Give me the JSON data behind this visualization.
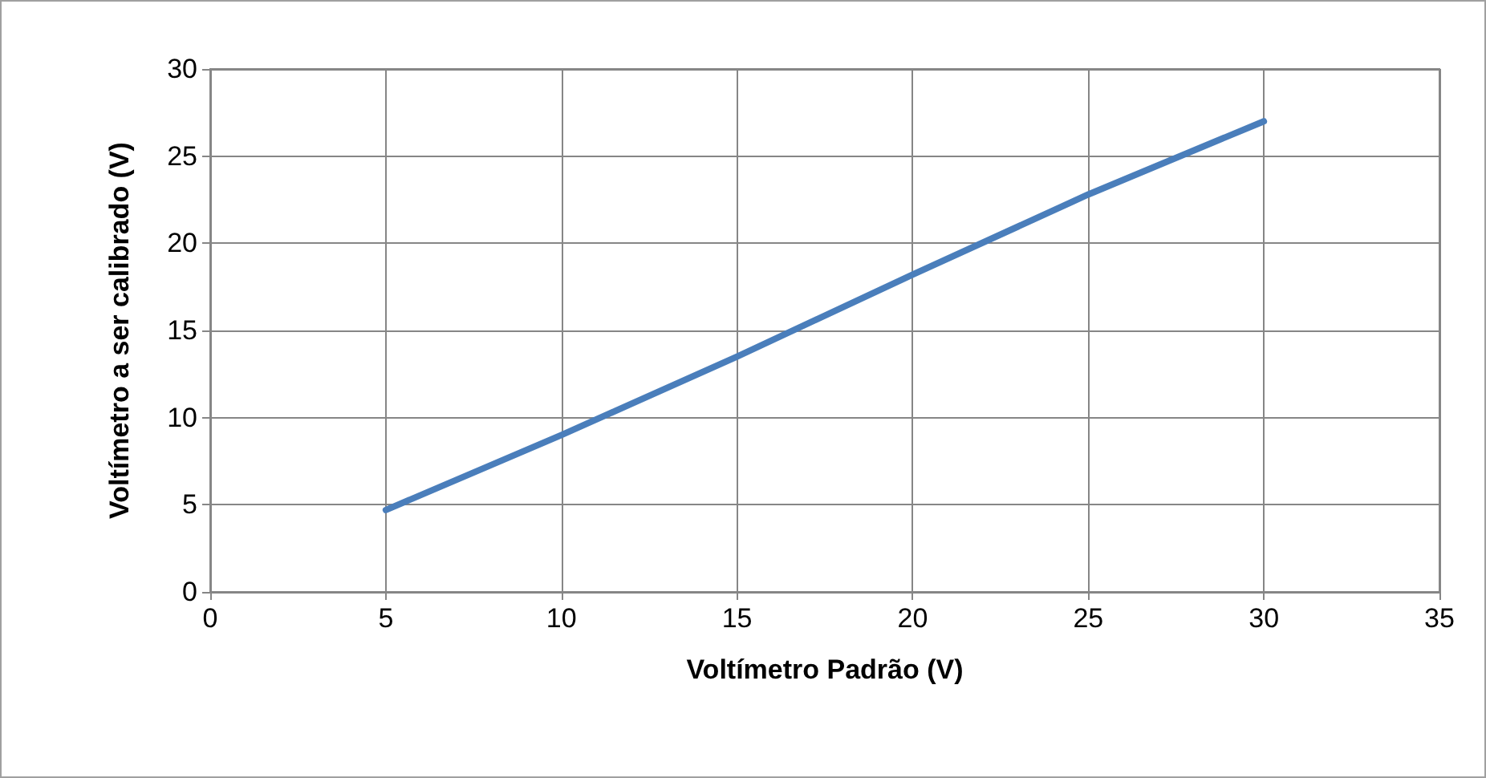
{
  "chart_data": {
    "type": "line",
    "xlabel": "Voltímetro Padrão (V)",
    "ylabel": "Voltímetro a ser calibrado (V)",
    "x": [
      5,
      10,
      15,
      20,
      25,
      30
    ],
    "series": [
      {
        "color": "#4a7ebb",
        "values": [
          4.7,
          9.0,
          13.5,
          18.2,
          22.8,
          27.0
        ]
      }
    ],
    "xlim": [
      0,
      35
    ],
    "xticks": [
      0,
      5,
      10,
      15,
      20,
      25,
      30,
      35
    ],
    "ylim": [
      0,
      30
    ],
    "yticks": [
      0,
      5,
      10,
      15,
      20,
      25,
      30
    ],
    "grid": true,
    "marker": "none",
    "line_style": "solid"
  }
}
